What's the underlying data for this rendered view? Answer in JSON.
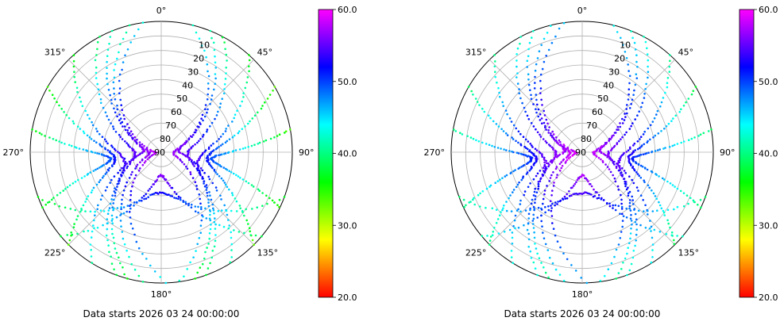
{
  "chart_data": [
    {
      "type": "scatter",
      "projection": "polar",
      "theta_direction": "clockwise",
      "theta_zero": "top",
      "angle_tick_labels": [
        "0°",
        "45°",
        "90°",
        "135°",
        "180°",
        "225°",
        "270°",
        "315°"
      ],
      "radial_axis": "elevation, 90 at center, 0 at rim",
      "radial_tick_labels": [
        "10",
        "20",
        "30",
        "40",
        "50",
        "60",
        "70",
        "80",
        "90"
      ],
      "caption": "Data starts 2026 03 24 00:00:00",
      "colorbar": {
        "colormap": "gist_rainbow (red low → magenta high)",
        "range": [
          20.0,
          60.0
        ],
        "tick_labels": [
          "20.0",
          "30.0",
          "40.0",
          "50.0",
          "60.0"
        ]
      },
      "grid": true,
      "series": [
        {
          "az0": 212,
          "az1": 338,
          "elMax": 78,
          "cn0Min": 41,
          "cn0Max": 56
        },
        {
          "az0": 195,
          "az1": 318,
          "elMax": 64,
          "cn0Min": 36,
          "cn0Max": 54
        },
        {
          "az0": 225,
          "az1": 300,
          "elMax": 58,
          "cn0Min": 34,
          "cn0Max": 52
        },
        {
          "az0": 245,
          "az1": 280,
          "elMax": 55,
          "cn0Min": 36,
          "cn0Max": 50
        },
        {
          "az0": 200,
          "az1": 332,
          "elMax": 72,
          "cn0Min": 38,
          "cn0Max": 55
        },
        {
          "az0": 188,
          "az1": 346,
          "elMax": 82,
          "cn0Min": 40,
          "cn0Max": 57
        },
        {
          "az0": 178,
          "az1": 352,
          "elMax": 86,
          "cn0Min": 44,
          "cn0Max": 58
        },
        {
          "az0": 148,
          "az1": 22,
          "elMax": 78,
          "cn0Min": 41,
          "cn0Max": 56
        },
        {
          "az0": 165,
          "az1": 42,
          "elMax": 64,
          "cn0Min": 36,
          "cn0Max": 54
        },
        {
          "az0": 135,
          "az1": 60,
          "elMax": 58,
          "cn0Min": 33,
          "cn0Max": 52
        },
        {
          "az0": 115,
          "az1": 80,
          "elMax": 55,
          "cn0Min": 34,
          "cn0Max": 50
        },
        {
          "az0": 160,
          "az1": 28,
          "elMax": 72,
          "cn0Min": 38,
          "cn0Max": 55
        },
        {
          "az0": 172,
          "az1": 14,
          "elMax": 82,
          "cn0Min": 42,
          "cn0Max": 57
        },
        {
          "az0": 230,
          "az1": 130,
          "elMax": 74,
          "cn0Min": 38,
          "cn0Max": 56
        },
        {
          "az0": 250,
          "az1": 110,
          "elMax": 62,
          "cn0Min": 36,
          "cn0Max": 52
        }
      ]
    },
    {
      "type": "scatter",
      "projection": "polar",
      "theta_direction": "clockwise",
      "theta_zero": "top",
      "angle_tick_labels": [
        "0°",
        "45°",
        "90°",
        "135°",
        "180°",
        "225°",
        "270°",
        "315°"
      ],
      "radial_axis": "elevation, 90 at center, 0 at rim",
      "radial_tick_labels": [
        "10",
        "20",
        "30",
        "40",
        "50",
        "60",
        "70",
        "80",
        "90"
      ],
      "caption": "Data starts 2026 03 24 00:00:00",
      "colorbar": {
        "colormap": "gist_rainbow (red low → magenta high)",
        "range": [
          20.0,
          60.0
        ],
        "tick_labels": [
          "20.0",
          "30.0",
          "40.0",
          "50.0",
          "60.0"
        ]
      },
      "grid": true,
      "series": [
        {
          "az0": 212,
          "az1": 338,
          "elMax": 78,
          "cn0Min": 43,
          "cn0Max": 57
        },
        {
          "az0": 195,
          "az1": 318,
          "elMax": 64,
          "cn0Min": 40,
          "cn0Max": 55
        },
        {
          "az0": 225,
          "az1": 300,
          "elMax": 58,
          "cn0Min": 39,
          "cn0Max": 53
        },
        {
          "az0": 245,
          "az1": 280,
          "elMax": 55,
          "cn0Min": 40,
          "cn0Max": 51
        },
        {
          "az0": 200,
          "az1": 332,
          "elMax": 72,
          "cn0Min": 42,
          "cn0Max": 56
        },
        {
          "az0": 188,
          "az1": 346,
          "elMax": 82,
          "cn0Min": 44,
          "cn0Max": 58
        },
        {
          "az0": 178,
          "az1": 352,
          "elMax": 86,
          "cn0Min": 46,
          "cn0Max": 59
        },
        {
          "az0": 148,
          "az1": 22,
          "elMax": 78,
          "cn0Min": 43,
          "cn0Max": 57
        },
        {
          "az0": 165,
          "az1": 42,
          "elMax": 64,
          "cn0Min": 40,
          "cn0Max": 55
        },
        {
          "az0": 135,
          "az1": 60,
          "elMax": 58,
          "cn0Min": 38,
          "cn0Max": 53
        },
        {
          "az0": 115,
          "az1": 80,
          "elMax": 55,
          "cn0Min": 39,
          "cn0Max": 51
        },
        {
          "az0": 160,
          "az1": 28,
          "elMax": 72,
          "cn0Min": 42,
          "cn0Max": 56
        },
        {
          "az0": 172,
          "az1": 14,
          "elMax": 82,
          "cn0Min": 44,
          "cn0Max": 58
        },
        {
          "az0": 230,
          "az1": 130,
          "elMax": 74,
          "cn0Min": 42,
          "cn0Max": 57
        },
        {
          "az0": 250,
          "az1": 110,
          "elMax": 62,
          "cn0Min": 40,
          "cn0Max": 54
        }
      ]
    }
  ]
}
